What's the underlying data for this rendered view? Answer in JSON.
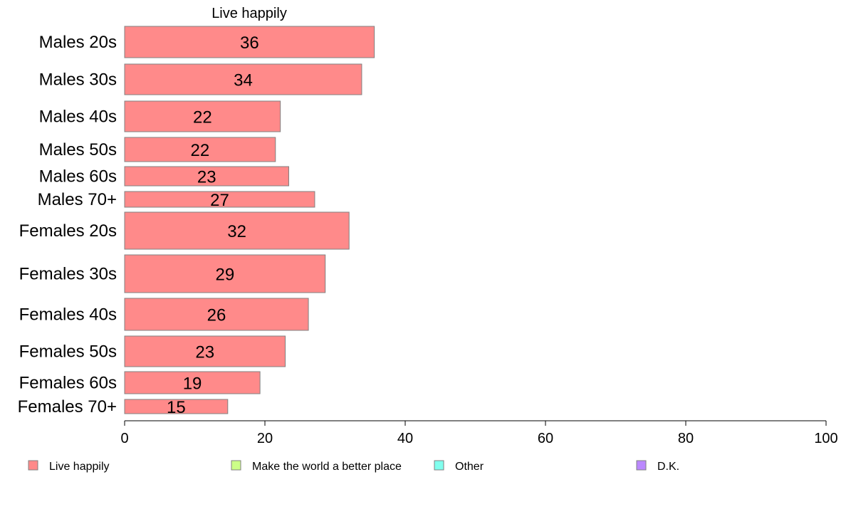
{
  "chart_data": {
    "type": "bar",
    "orientation": "horizontal",
    "title": "Live happily",
    "categories": [
      "Males 20s",
      "Males 30s",
      "Males 40s",
      "Males 50s",
      "Males 60s",
      "Males 70+",
      "Females 20s",
      "Females 30s",
      "Females 40s",
      "Females 50s",
      "Females 60s",
      "Females 70+"
    ],
    "series": [
      {
        "name": "Live happily",
        "color": "#ff8a8a",
        "values": [
          35.6,
          33.8,
          22.2,
          21.5,
          23.4,
          27.1,
          32.0,
          28.6,
          26.2,
          22.9,
          19.3,
          14.7
        ],
        "labels": [
          "36",
          "34",
          "22",
          "22",
          "23",
          "27",
          "32",
          "29",
          "26",
          "23",
          "19",
          "15"
        ]
      }
    ],
    "xlim": [
      0,
      100
    ],
    "xticks": [
      0,
      20,
      40,
      60,
      80,
      100
    ],
    "legend": {
      "position": "bottom",
      "entries": [
        {
          "label": "Live happily",
          "color": "#ff8a8a"
        },
        {
          "label": "Make the world a better place",
          "color": "#ccff88"
        },
        {
          "label": "Other",
          "color": "#80ffee"
        },
        {
          "label": "D.K.",
          "color": "#bb88ff"
        }
      ]
    }
  }
}
